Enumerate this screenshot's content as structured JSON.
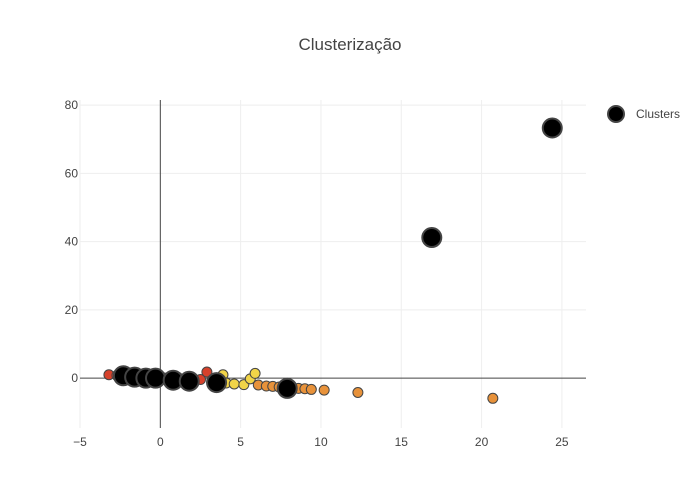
{
  "chart_data": {
    "type": "scatter",
    "title": "Clusterização",
    "xlabel": "",
    "ylabel": "",
    "xlim": [
      -5,
      26.5
    ],
    "ylim": [
      -14.6,
      81.5
    ],
    "xticks": [
      -5,
      0,
      5,
      10,
      15,
      20,
      25
    ],
    "yticks": [
      0,
      20,
      40,
      60,
      80
    ],
    "grid": true,
    "zero_lines": true,
    "legend": {
      "position": "top-right",
      "entries": [
        "Clusters"
      ]
    },
    "colors": {
      "red": "#d6412b",
      "orange": "#e8923a",
      "yellow": "#f1d448",
      "cluster": "#000000",
      "marker_edge": "#444444",
      "grid": "#eeeeee",
      "zeroline": "#444444"
    },
    "points": [
      {
        "x": -3.2,
        "y": 1.0,
        "c": "red"
      },
      {
        "x": -2.7,
        "y": 0.8,
        "c": "red"
      },
      {
        "x": -2.2,
        "y": 0.9,
        "c": "red"
      },
      {
        "x": -1.8,
        "y": 0.7,
        "c": "red"
      },
      {
        "x": -1.3,
        "y": 0.5,
        "c": "red"
      },
      {
        "x": -0.8,
        "y": 0.6,
        "c": "red"
      },
      {
        "x": -0.3,
        "y": 0.4,
        "c": "red"
      },
      {
        "x": 0.2,
        "y": 0.1,
        "c": "red"
      },
      {
        "x": 0.7,
        "y": -0.3,
        "c": "red"
      },
      {
        "x": 1.1,
        "y": 0.2,
        "c": "red"
      },
      {
        "x": 1.6,
        "y": -0.6,
        "c": "red"
      },
      {
        "x": 2.1,
        "y": -0.9,
        "c": "red"
      },
      {
        "x": 2.5,
        "y": -0.4,
        "c": "red"
      },
      {
        "x": 2.9,
        "y": 1.8,
        "c": "red"
      },
      {
        "x": 3.3,
        "y": -1.1,
        "c": "red"
      },
      {
        "x": 3.9,
        "y": 1.0,
        "c": "yellow"
      },
      {
        "x": 4.1,
        "y": -1.4,
        "c": "yellow"
      },
      {
        "x": 4.6,
        "y": -1.7,
        "c": "yellow"
      },
      {
        "x": 5.2,
        "y": -1.9,
        "c": "yellow"
      },
      {
        "x": 5.6,
        "y": -0.2,
        "c": "yellow"
      },
      {
        "x": 5.9,
        "y": 1.4,
        "c": "yellow"
      },
      {
        "x": 6.1,
        "y": -2.0,
        "c": "orange"
      },
      {
        "x": 6.6,
        "y": -2.3,
        "c": "orange"
      },
      {
        "x": 7.0,
        "y": -2.4,
        "c": "orange"
      },
      {
        "x": 7.4,
        "y": -2.6,
        "c": "orange"
      },
      {
        "x": 7.7,
        "y": -2.8,
        "c": "orange"
      },
      {
        "x": 8.2,
        "y": -2.7,
        "c": "orange"
      },
      {
        "x": 8.6,
        "y": -3.0,
        "c": "orange"
      },
      {
        "x": 9.0,
        "y": -3.1,
        "c": "orange"
      },
      {
        "x": 9.4,
        "y": -3.3,
        "c": "orange"
      },
      {
        "x": 10.2,
        "y": -3.5,
        "c": "orange"
      },
      {
        "x": 12.3,
        "y": -4.2,
        "c": "orange"
      },
      {
        "x": 20.7,
        "y": -5.9,
        "c": "orange"
      }
    ],
    "series": [
      {
        "name": "Clusters",
        "x": [
          -2.3,
          -1.6,
          -0.9,
          -0.3,
          0.8,
          1.8,
          3.5,
          7.9,
          16.9,
          24.4
        ],
        "y": [
          0.7,
          0.3,
          0.0,
          0.0,
          -0.6,
          -0.9,
          -1.3,
          -3.0,
          41.2,
          73.3
        ]
      }
    ]
  }
}
